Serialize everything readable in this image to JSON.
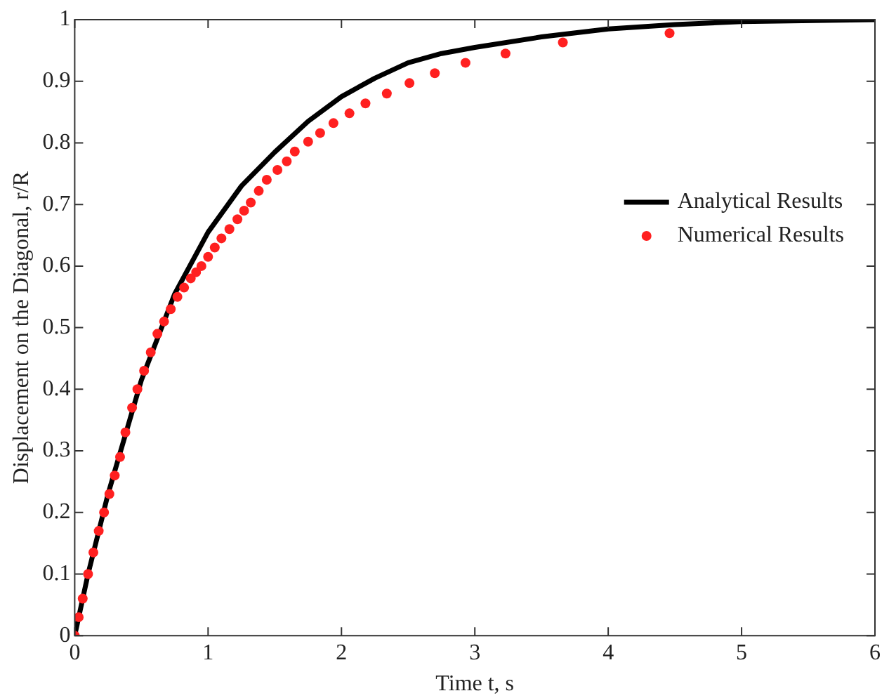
{
  "chart_data": {
    "type": "line",
    "xlabel": "Time t, s",
    "ylabel": "Displacement on the Diagonal, r/R",
    "xlim": [
      0,
      6
    ],
    "xticks": [
      0,
      1,
      2,
      3,
      4,
      5,
      6
    ],
    "ylim": [
      0,
      1
    ],
    "yticks": [
      0,
      0.1,
      0.2,
      0.3,
      0.4,
      0.5,
      0.6,
      0.7,
      0.8,
      0.9,
      1
    ],
    "grid": false,
    "legend": "top right",
    "series": [
      {
        "name": "Analytical Results",
        "type": "line",
        "color": "#000000",
        "marker": "none",
        "x": [
          0,
          0.1,
          0.25,
          0.5,
          0.75,
          1,
          1.25,
          1.5,
          1.75,
          2,
          2.25,
          2.5,
          2.75,
          3,
          3.5,
          4,
          4.5,
          5,
          6
        ],
        "values": [
          0,
          0.1,
          0.23,
          0.415,
          0.555,
          0.655,
          0.73,
          0.785,
          0.835,
          0.875,
          0.905,
          0.93,
          0.945,
          0.955,
          0.972,
          0.985,
          0.992,
          0.997,
          1.0
        ]
      },
      {
        "name": "Numerical Results",
        "type": "scatter",
        "color": "#ff2020",
        "marker": "circle",
        "x": [
          0,
          0.03,
          0.06,
          0.1,
          0.14,
          0.18,
          0.22,
          0.26,
          0.3,
          0.34,
          0.38,
          0.43,
          0.47,
          0.52,
          0.57,
          0.62,
          0.67,
          0.72,
          0.77,
          0.82,
          0.87,
          0.91,
          0.95,
          1.0,
          1.05,
          1.1,
          1.16,
          1.22,
          1.27,
          1.32,
          1.38,
          1.44,
          1.52,
          1.59,
          1.65,
          1.75,
          1.84,
          1.94,
          2.06,
          2.18,
          2.34,
          2.51,
          2.7,
          2.93,
          3.23,
          3.66,
          4.46
        ],
        "values": [
          0,
          0.03,
          0.06,
          0.1,
          0.135,
          0.17,
          0.2,
          0.23,
          0.26,
          0.29,
          0.33,
          0.37,
          0.4,
          0.43,
          0.46,
          0.49,
          0.51,
          0.53,
          0.55,
          0.565,
          0.58,
          0.59,
          0.6,
          0.615,
          0.63,
          0.645,
          0.66,
          0.676,
          0.69,
          0.703,
          0.722,
          0.74,
          0.756,
          0.77,
          0.786,
          0.802,
          0.816,
          0.832,
          0.848,
          0.864,
          0.88,
          0.897,
          0.913,
          0.93,
          0.945,
          0.963,
          0.978
        ]
      }
    ]
  }
}
